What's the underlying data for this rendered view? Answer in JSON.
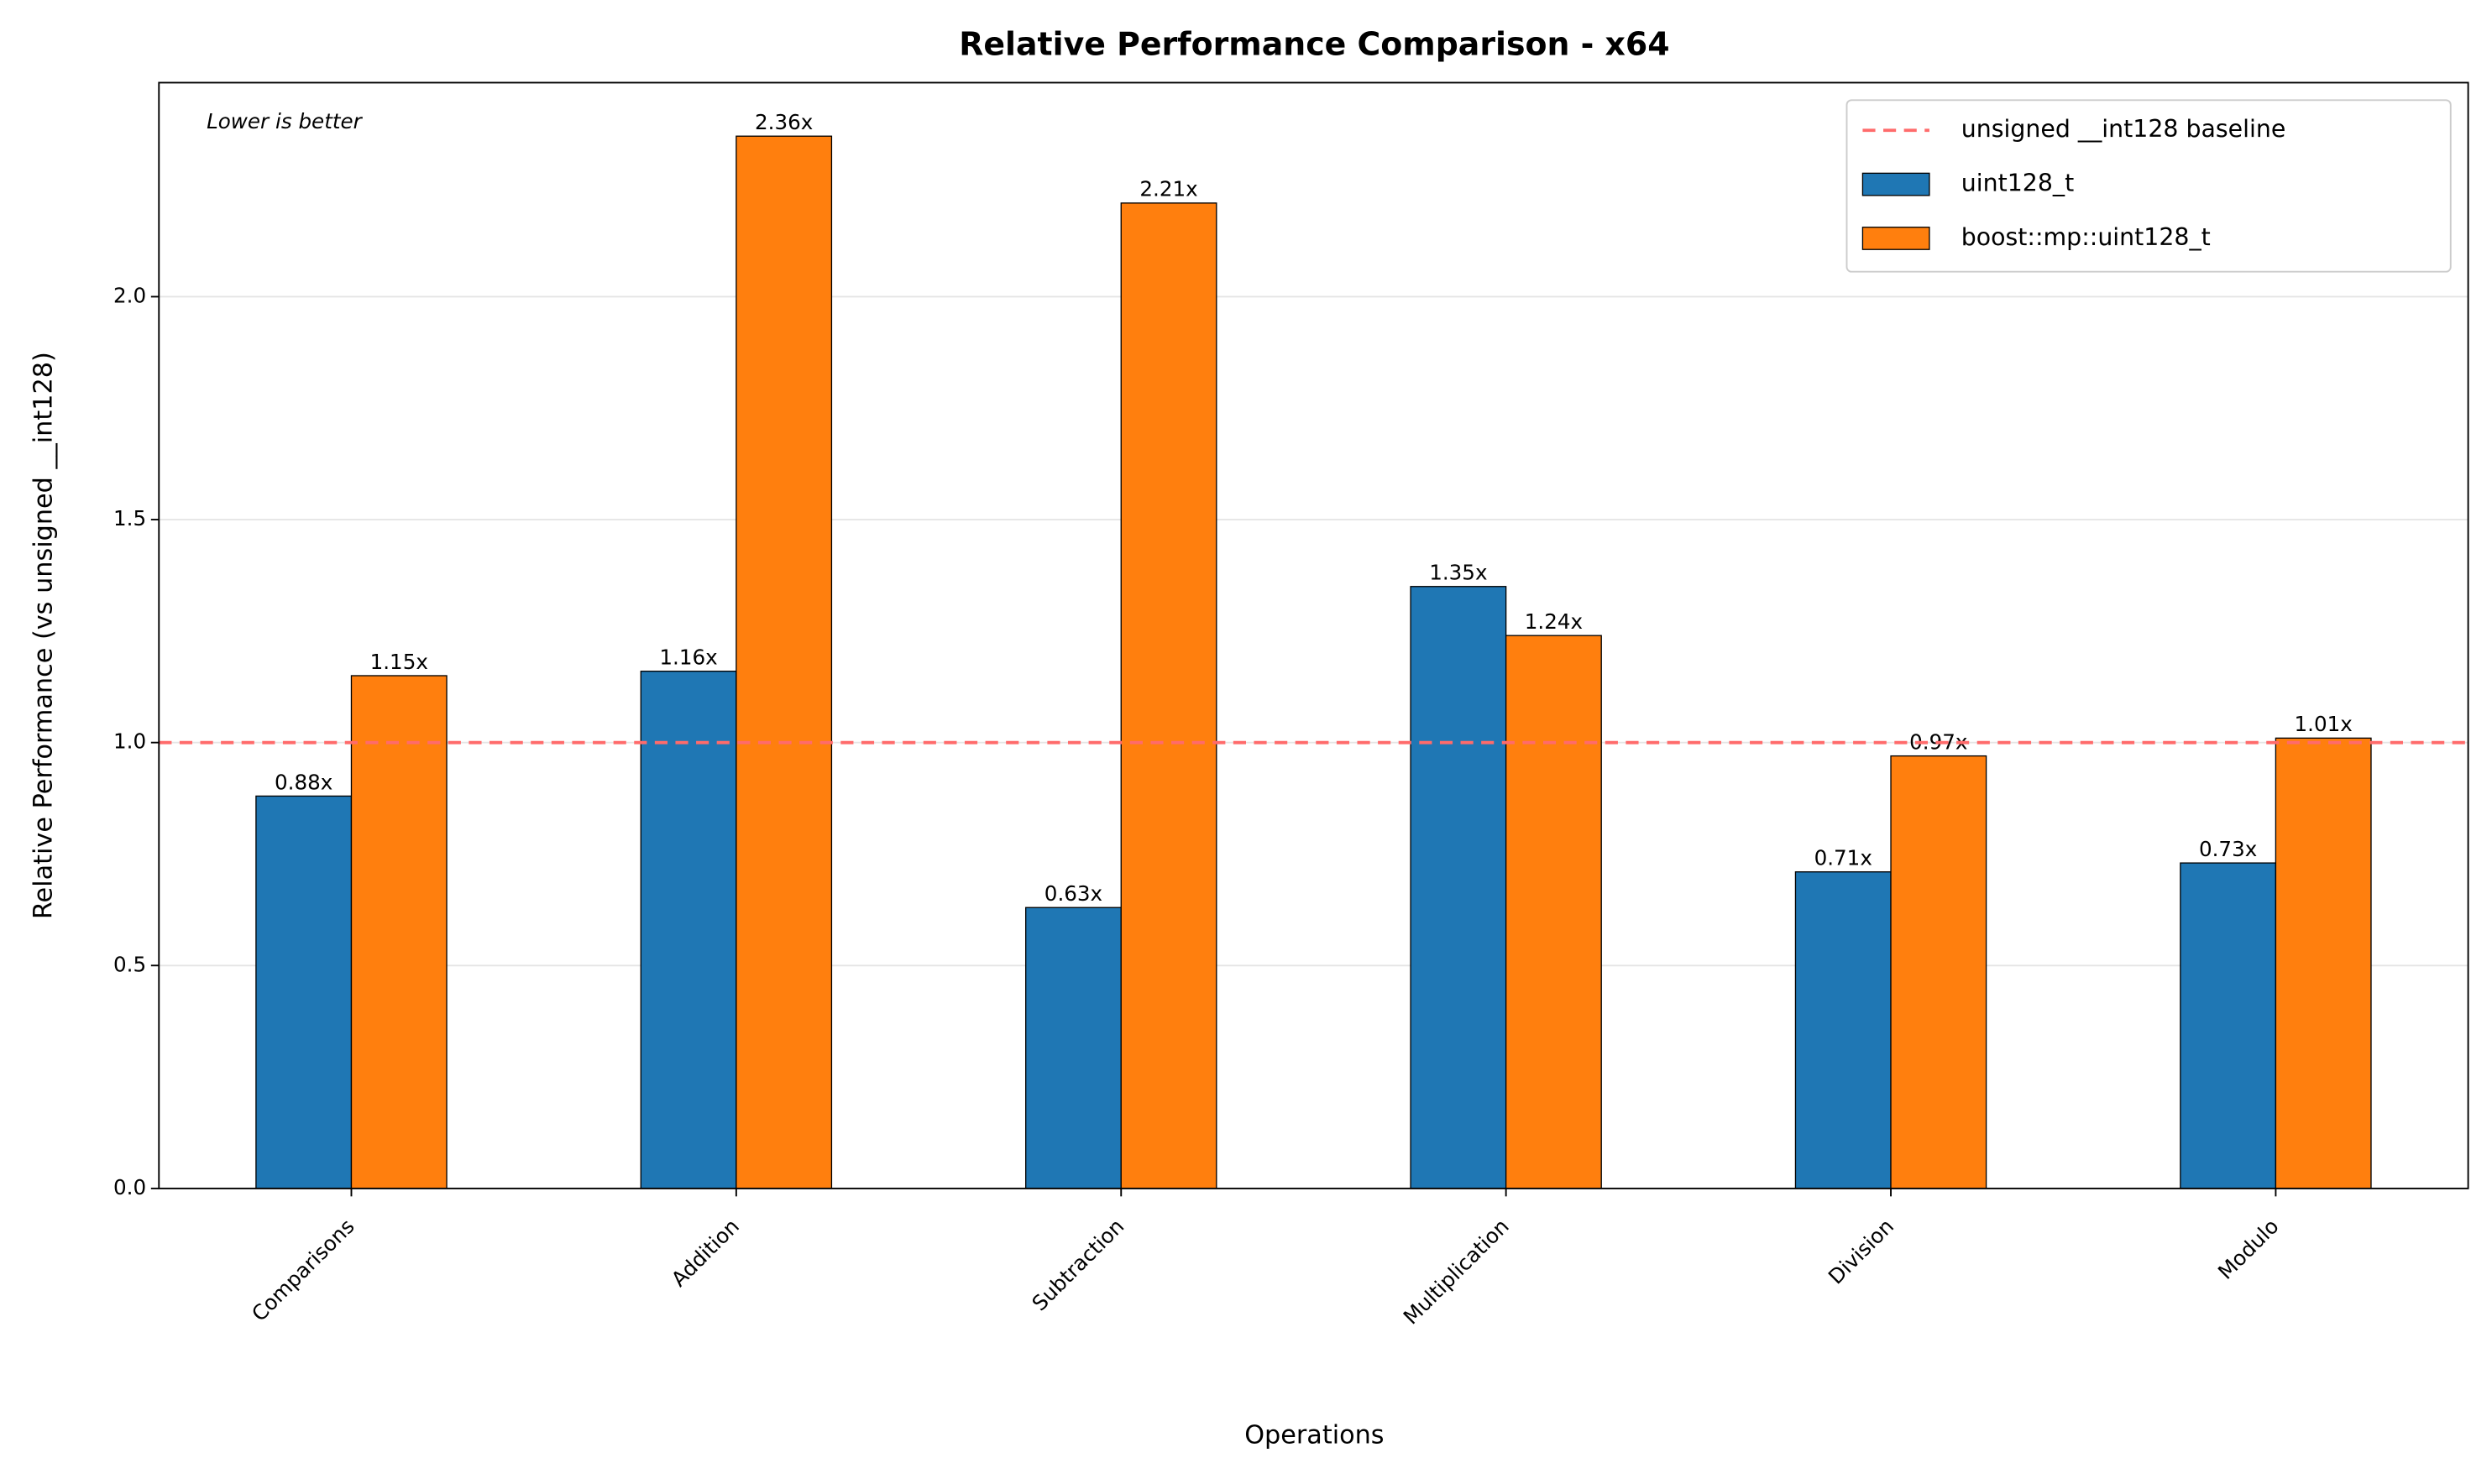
{
  "chart_data": {
    "type": "bar",
    "title": "Relative Performance Comparison - x64",
    "xlabel": "Operations",
    "ylabel": "Relative Performance (vs unsigned __int128)",
    "annotation": "Lower is better",
    "categories": [
      "Comparisons",
      "Addition",
      "Subtraction",
      "Multiplication",
      "Division",
      "Modulo"
    ],
    "series": [
      {
        "name": "uint128_t",
        "color": "#1f77b4",
        "values": [
          0.88,
          1.16,
          0.63,
          1.35,
          0.71,
          0.73
        ],
        "value_labels": [
          "0.88x",
          "1.16x",
          "0.63x",
          "1.35x",
          "0.71x",
          "0.73x"
        ]
      },
      {
        "name": "boost::mp::uint128_t",
        "color": "#ff7f0e",
        "values": [
          1.15,
          2.36,
          2.21,
          1.24,
          0.97,
          1.01
        ],
        "value_labels": [
          "1.15x",
          "2.36x",
          "2.21x",
          "1.24x",
          "0.97x",
          "1.01x"
        ]
      }
    ],
    "baseline": {
      "name": "unsigned __int128 baseline",
      "value": 1.0,
      "color": "#ff6b6b"
    },
    "ylim": [
      0,
      2.48
    ],
    "yticks": [
      {
        "value": 0,
        "label": "0.0"
      },
      {
        "value": 0.5,
        "label": "0.5"
      },
      {
        "value": 1,
        "label": "1.0"
      },
      {
        "value": 1.5,
        "label": "1.5"
      },
      {
        "value": 2,
        "label": "2.0"
      }
    ],
    "grid": true,
    "legend": "upper right"
  }
}
